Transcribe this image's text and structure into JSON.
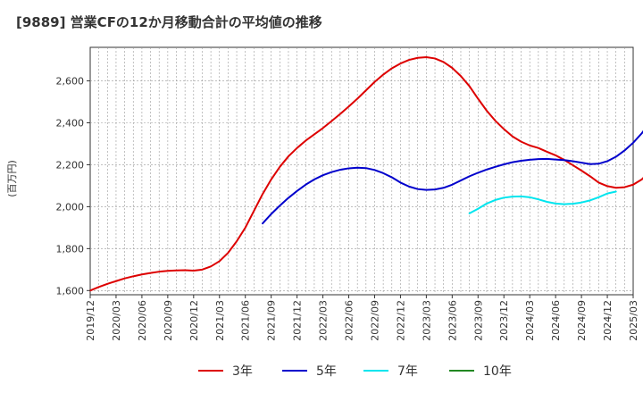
{
  "chart_data": {
    "type": "line",
    "title": "[9889]  営業CFの12か月移動合計の平均値の推移",
    "ylabel": "(百万円)",
    "xlabel": "",
    "x_ticks": [
      "2019/12",
      "2020/03",
      "2020/06",
      "2020/09",
      "2020/12",
      "2021/03",
      "2021/06",
      "2021/09",
      "2021/12",
      "2022/03",
      "2022/06",
      "2022/09",
      "2022/12",
      "2023/03",
      "2023/06",
      "2023/09",
      "2023/12",
      "2024/03",
      "2024/06",
      "2024/09",
      "2024/12",
      "2025/03"
    ],
    "y_ticks": [
      1600,
      1800,
      2000,
      2200,
      2400,
      2600
    ],
    "y_tick_labels": [
      "1,600",
      "1,800",
      "2,000",
      "2,200",
      "2,400",
      "2,600"
    ],
    "ylim": [
      1580,
      2760
    ],
    "xlim": [
      "2019/12",
      "2025/03"
    ],
    "grid": true,
    "legend_position": "bottom",
    "series": [
      {
        "name": "3年",
        "color": "#dd0000",
        "points": [
          [
            "2019/12",
            1600
          ],
          [
            "2020/01",
            1617
          ],
          [
            "2020/02",
            1632
          ],
          [
            "2020/03",
            1645
          ],
          [
            "2020/04",
            1658
          ],
          [
            "2020/05",
            1668
          ],
          [
            "2020/06",
            1677
          ],
          [
            "2020/07",
            1684
          ],
          [
            "2020/08",
            1690
          ],
          [
            "2020/09",
            1694
          ],
          [
            "2020/10",
            1696
          ],
          [
            "2020/11",
            1697
          ],
          [
            "2020/12",
            1695
          ],
          [
            "2021/01",
            1700
          ],
          [
            "2021/02",
            1715
          ],
          [
            "2021/03",
            1740
          ],
          [
            "2021/04",
            1780
          ],
          [
            "2021/05",
            1835
          ],
          [
            "2021/06",
            1900
          ],
          [
            "2021/07",
            1980
          ],
          [
            "2021/08",
            2060
          ],
          [
            "2021/09",
            2130
          ],
          [
            "2021/10",
            2190
          ],
          [
            "2021/11",
            2240
          ],
          [
            "2021/12",
            2280
          ],
          [
            "2022/01",
            2315
          ],
          [
            "2022/02",
            2345
          ],
          [
            "2022/03",
            2375
          ],
          [
            "2022/04",
            2408
          ],
          [
            "2022/05",
            2442
          ],
          [
            "2022/06",
            2478
          ],
          [
            "2022/07",
            2515
          ],
          [
            "2022/08",
            2555
          ],
          [
            "2022/09",
            2595
          ],
          [
            "2022/10",
            2630
          ],
          [
            "2022/11",
            2660
          ],
          [
            "2022/12",
            2683
          ],
          [
            "2023/01",
            2700
          ],
          [
            "2023/02",
            2710
          ],
          [
            "2023/03",
            2713
          ],
          [
            "2023/04",
            2707
          ],
          [
            "2023/05",
            2690
          ],
          [
            "2023/06",
            2662
          ],
          [
            "2023/07",
            2623
          ],
          [
            "2023/08",
            2575
          ],
          [
            "2023/09",
            2515
          ],
          [
            "2023/10",
            2458
          ],
          [
            "2023/11",
            2410
          ],
          [
            "2023/12",
            2370
          ],
          [
            "2024/01",
            2335
          ],
          [
            "2024/02",
            2310
          ],
          [
            "2024/03",
            2292
          ],
          [
            "2024/04",
            2280
          ],
          [
            "2024/05",
            2262
          ],
          [
            "2024/06",
            2245
          ],
          [
            "2024/07",
            2223
          ],
          [
            "2024/08",
            2198
          ],
          [
            "2024/09",
            2172
          ],
          [
            "2024/10",
            2145
          ],
          [
            "2024/11",
            2115
          ],
          [
            "2024/12",
            2098
          ],
          [
            "2025/01",
            2090
          ],
          [
            "2025/02",
            2093
          ],
          [
            "2025/03",
            2105
          ],
          [
            "2025/04",
            2130
          ],
          [
            "2025/05",
            2170
          ],
          [
            "2025/06",
            2222
          ]
        ]
      },
      {
        "name": "5年",
        "color": "#0000cc",
        "points": [
          [
            "2021/08",
            1920
          ],
          [
            "2021/09",
            1965
          ],
          [
            "2021/10",
            2005
          ],
          [
            "2021/11",
            2042
          ],
          [
            "2021/12",
            2075
          ],
          [
            "2022/01",
            2105
          ],
          [
            "2022/02",
            2130
          ],
          [
            "2022/03",
            2150
          ],
          [
            "2022/04",
            2165
          ],
          [
            "2022/05",
            2176
          ],
          [
            "2022/06",
            2183
          ],
          [
            "2022/07",
            2186
          ],
          [
            "2022/08",
            2184
          ],
          [
            "2022/09",
            2175
          ],
          [
            "2022/10",
            2160
          ],
          [
            "2022/11",
            2140
          ],
          [
            "2022/12",
            2115
          ],
          [
            "2023/01",
            2096
          ],
          [
            "2023/02",
            2084
          ],
          [
            "2023/03",
            2080
          ],
          [
            "2023/04",
            2082
          ],
          [
            "2023/05",
            2090
          ],
          [
            "2023/06",
            2105
          ],
          [
            "2023/07",
            2125
          ],
          [
            "2023/08",
            2145
          ],
          [
            "2023/09",
            2162
          ],
          [
            "2023/10",
            2177
          ],
          [
            "2023/11",
            2190
          ],
          [
            "2023/12",
            2202
          ],
          [
            "2024/01",
            2212
          ],
          [
            "2024/02",
            2219
          ],
          [
            "2024/03",
            2224
          ],
          [
            "2024/04",
            2227
          ],
          [
            "2024/05",
            2228
          ],
          [
            "2024/06",
            2225
          ],
          [
            "2024/07",
            2222
          ],
          [
            "2024/08",
            2217
          ],
          [
            "2024/09",
            2210
          ],
          [
            "2024/10",
            2203
          ],
          [
            "2024/11",
            2205
          ],
          [
            "2024/12",
            2217
          ],
          [
            "2025/01",
            2238
          ],
          [
            "2025/02",
            2268
          ],
          [
            "2025/03",
            2305
          ],
          [
            "2025/04",
            2350
          ],
          [
            "2025/05",
            2405
          ],
          [
            "2025/06",
            2413
          ]
        ]
      },
      {
        "name": "7年",
        "color": "#00e5ee",
        "points": [
          [
            "2023/08",
            1968
          ],
          [
            "2023/09",
            1990
          ],
          [
            "2023/10",
            2015
          ],
          [
            "2023/11",
            2032
          ],
          [
            "2023/12",
            2043
          ],
          [
            "2024/01",
            2048
          ],
          [
            "2024/02",
            2049
          ],
          [
            "2024/03",
            2045
          ],
          [
            "2024/04",
            2035
          ],
          [
            "2024/05",
            2023
          ],
          [
            "2024/06",
            2015
          ],
          [
            "2024/07",
            2012
          ],
          [
            "2024/08",
            2014
          ],
          [
            "2024/09",
            2020
          ],
          [
            "2024/10",
            2030
          ],
          [
            "2024/11",
            2045
          ],
          [
            "2024/12",
            2063
          ],
          [
            "2025/01",
            2072
          ]
        ]
      },
      {
        "name": "10年",
        "color": "#228822",
        "points": []
      }
    ]
  }
}
